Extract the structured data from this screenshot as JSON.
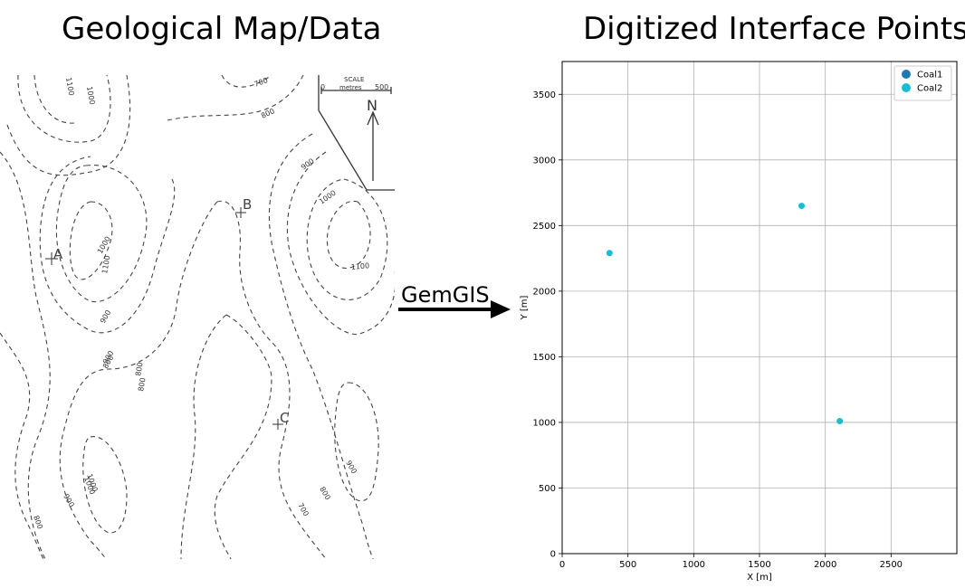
{
  "left_panel": {
    "title": "Geological Map/Data",
    "map": {
      "scale_label": "SCALE",
      "scale_units": "metres",
      "scale_start": "0",
      "scale_end": "500",
      "north_label": "N",
      "point_labels": [
        "A",
        "B",
        "C"
      ],
      "contour_labels": [
        "1100",
        "1000",
        "700",
        "800",
        "900",
        "1000",
        "1100",
        "1000",
        "900",
        "800",
        "1100",
        "1000",
        "900",
        "800",
        "1000",
        "900",
        "800",
        "800",
        "700",
        "800",
        "900"
      ]
    }
  },
  "arrow": {
    "label": "GemGIS"
  },
  "right_panel": {
    "title": "Digitized Interface Points"
  },
  "chart_data": {
    "type": "scatter",
    "xlabel": "X [m]",
    "ylabel": "Y [m]",
    "xlim": [
      0,
      3000
    ],
    "ylim": [
      0,
      3750
    ],
    "x_ticks": [
      0,
      500,
      1000,
      1500,
      2000,
      2500
    ],
    "y_ticks": [
      0,
      500,
      1000,
      1500,
      2000,
      2500,
      3000,
      3500
    ],
    "grid": true,
    "legend_position": "top-right",
    "series": [
      {
        "name": "Coal1",
        "color": "#1f77b4",
        "points": []
      },
      {
        "name": "Coal2",
        "color": "#17becf",
        "points": [
          [
            360,
            2290
          ],
          [
            1820,
            2650
          ],
          [
            2110,
            1010
          ]
        ]
      }
    ]
  }
}
